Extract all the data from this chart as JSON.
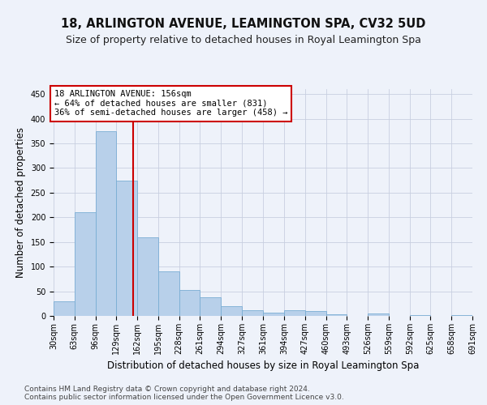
{
  "title1": "18, ARLINGTON AVENUE, LEAMINGTON SPA, CV32 5UD",
  "title2": "Size of property relative to detached houses in Royal Leamington Spa",
  "xlabel": "Distribution of detached houses by size in Royal Leamington Spa",
  "ylabel": "Number of detached properties",
  "bar_values": [
    30,
    210,
    375,
    275,
    160,
    90,
    52,
    38,
    20,
    12,
    6,
    11,
    10,
    4,
    0,
    5,
    0,
    2,
    0,
    2
  ],
  "bin_edges": [
    30,
    63,
    96,
    129,
    162,
    195,
    228,
    261,
    294,
    327,
    361,
    394,
    427,
    460,
    493,
    526,
    559,
    592,
    625,
    658,
    691
  ],
  "x_tick_labels": [
    "30sqm",
    "63sqm",
    "96sqm",
    "129sqm",
    "162sqm",
    "195sqm",
    "228sqm",
    "261sqm",
    "294sqm",
    "327sqm",
    "361sqm",
    "394sqm",
    "427sqm",
    "460sqm",
    "493sqm",
    "526sqm",
    "559sqm",
    "592sqm",
    "625sqm",
    "658sqm",
    "691sqm"
  ],
  "bar_color": "#b8d0ea",
  "bar_edge_color": "#7aadd4",
  "grid_color": "#c8cfe0",
  "background_color": "#eef2fa",
  "property_line_x": 156,
  "property_line_color": "#cc0000",
  "annotation_line1": "18 ARLINGTON AVENUE: 156sqm",
  "annotation_line2": "← 64% of detached houses are smaller (831)",
  "annotation_line3": "36% of semi-detached houses are larger (458) →",
  "annotation_box_color": "#ffffff",
  "annotation_border_color": "#cc0000",
  "ylim": [
    0,
    460
  ],
  "yticks": [
    0,
    50,
    100,
    150,
    200,
    250,
    300,
    350,
    400,
    450
  ],
  "footer_line1": "Contains HM Land Registry data © Crown copyright and database right 2024.",
  "footer_line2": "Contains public sector information licensed under the Open Government Licence v3.0.",
  "title1_fontsize": 10.5,
  "title2_fontsize": 9,
  "ylabel_fontsize": 8.5,
  "xlabel_fontsize": 8.5,
  "tick_fontsize": 7,
  "annotation_fontsize": 7.5,
  "footer_fontsize": 6.5
}
